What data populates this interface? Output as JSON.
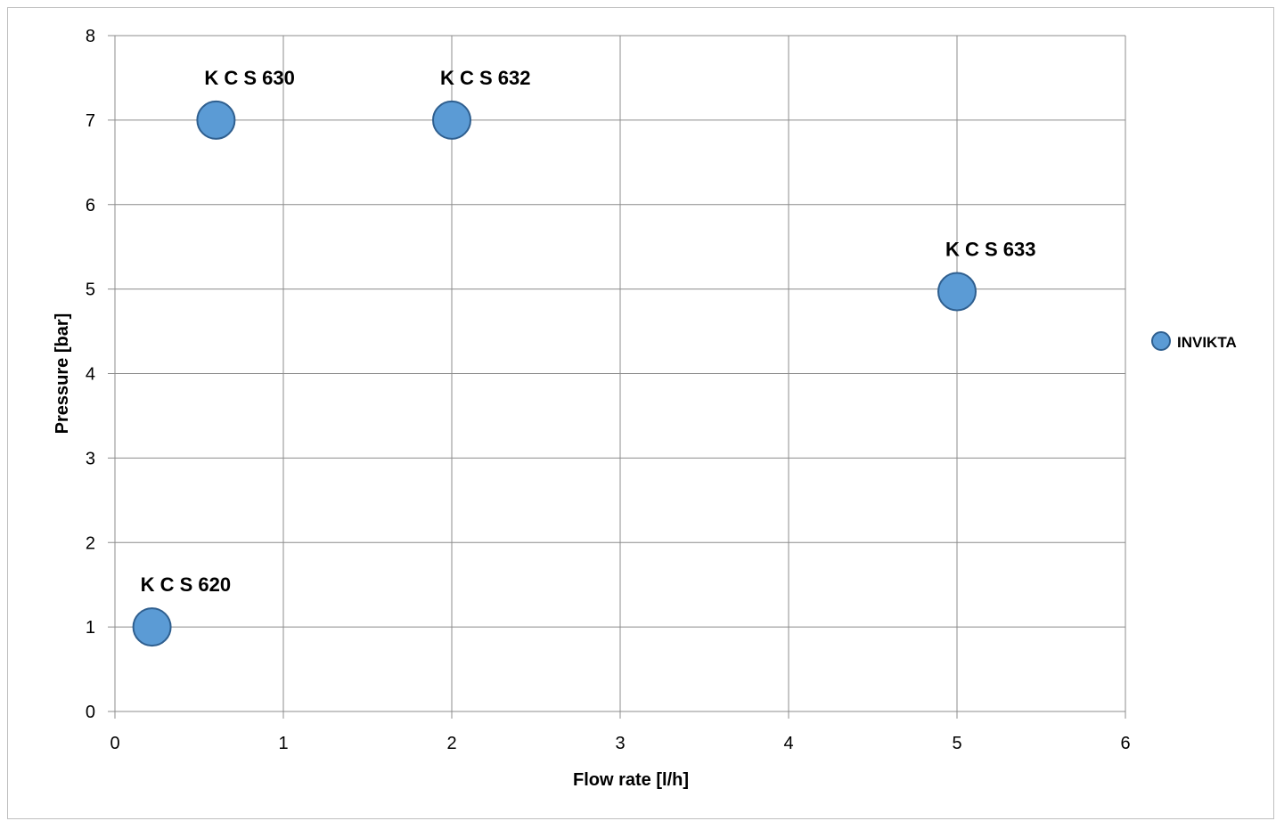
{
  "chart_data": {
    "type": "scatter",
    "title": "",
    "xlabel": "Flow rate [l/h]",
    "ylabel": "Pressure [bar]",
    "xlim": [
      0,
      6
    ],
    "ylim": [
      0,
      8
    ],
    "xticks": [
      "0",
      "1",
      "2",
      "3",
      "4",
      "5",
      "6"
    ],
    "yticks": [
      "0",
      "1",
      "2",
      "3",
      "4",
      "5",
      "6",
      "7",
      "8"
    ],
    "grid": true,
    "legend_position": "right",
    "series": [
      {
        "name": "INVIKTA",
        "color": "#5b9bd5",
        "edge_color": "#2f5f8f",
        "points": [
          {
            "label": "K C S 620",
            "x": 0.22,
            "y": 1.0
          },
          {
            "label": "K C S 630",
            "x": 0.6,
            "y": 7.0
          },
          {
            "label": "K C S 632",
            "x": 2.0,
            "y": 7.0
          },
          {
            "label": "K C S 633",
            "x": 5.0,
            "y": 4.97
          }
        ]
      }
    ]
  }
}
